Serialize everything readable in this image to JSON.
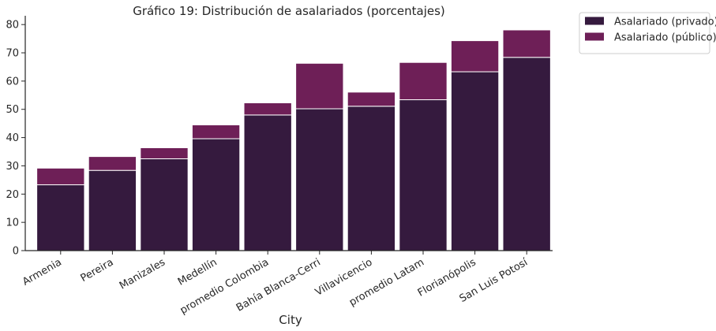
{
  "chart_data": {
    "type": "bar",
    "stacked": true,
    "title": "Gráfico 19: Distribución de asalariados (porcentajes)",
    "xlabel": "City",
    "ylabel": "",
    "ylim": [
      0,
      82
    ],
    "yticks": [
      0,
      10,
      20,
      30,
      40,
      50,
      60,
      70,
      80
    ],
    "grid": false,
    "legend_position": "outside-top-right",
    "categories": [
      "Armenia",
      "Pereira",
      "Manizales",
      "Medellín",
      "promedio Colombia",
      "Bahía Blanca-Cerri",
      "Villavicencio",
      "promedio Latam",
      "Florianópolis",
      "San Luis Potosí"
    ],
    "series": [
      {
        "name": "Asalariado (privado)",
        "color": "#351A3E",
        "values": [
          23.3,
          28.4,
          32.5,
          39.6,
          48.0,
          50.2,
          51.1,
          53.4,
          63.3,
          68.4
        ]
      },
      {
        "name": "Asalariado (público)",
        "color": "#6E1F57",
        "values": [
          5.9,
          4.9,
          3.9,
          4.9,
          4.3,
          16.1,
          5.0,
          13.2,
          11.0,
          9.7
        ]
      }
    ]
  }
}
